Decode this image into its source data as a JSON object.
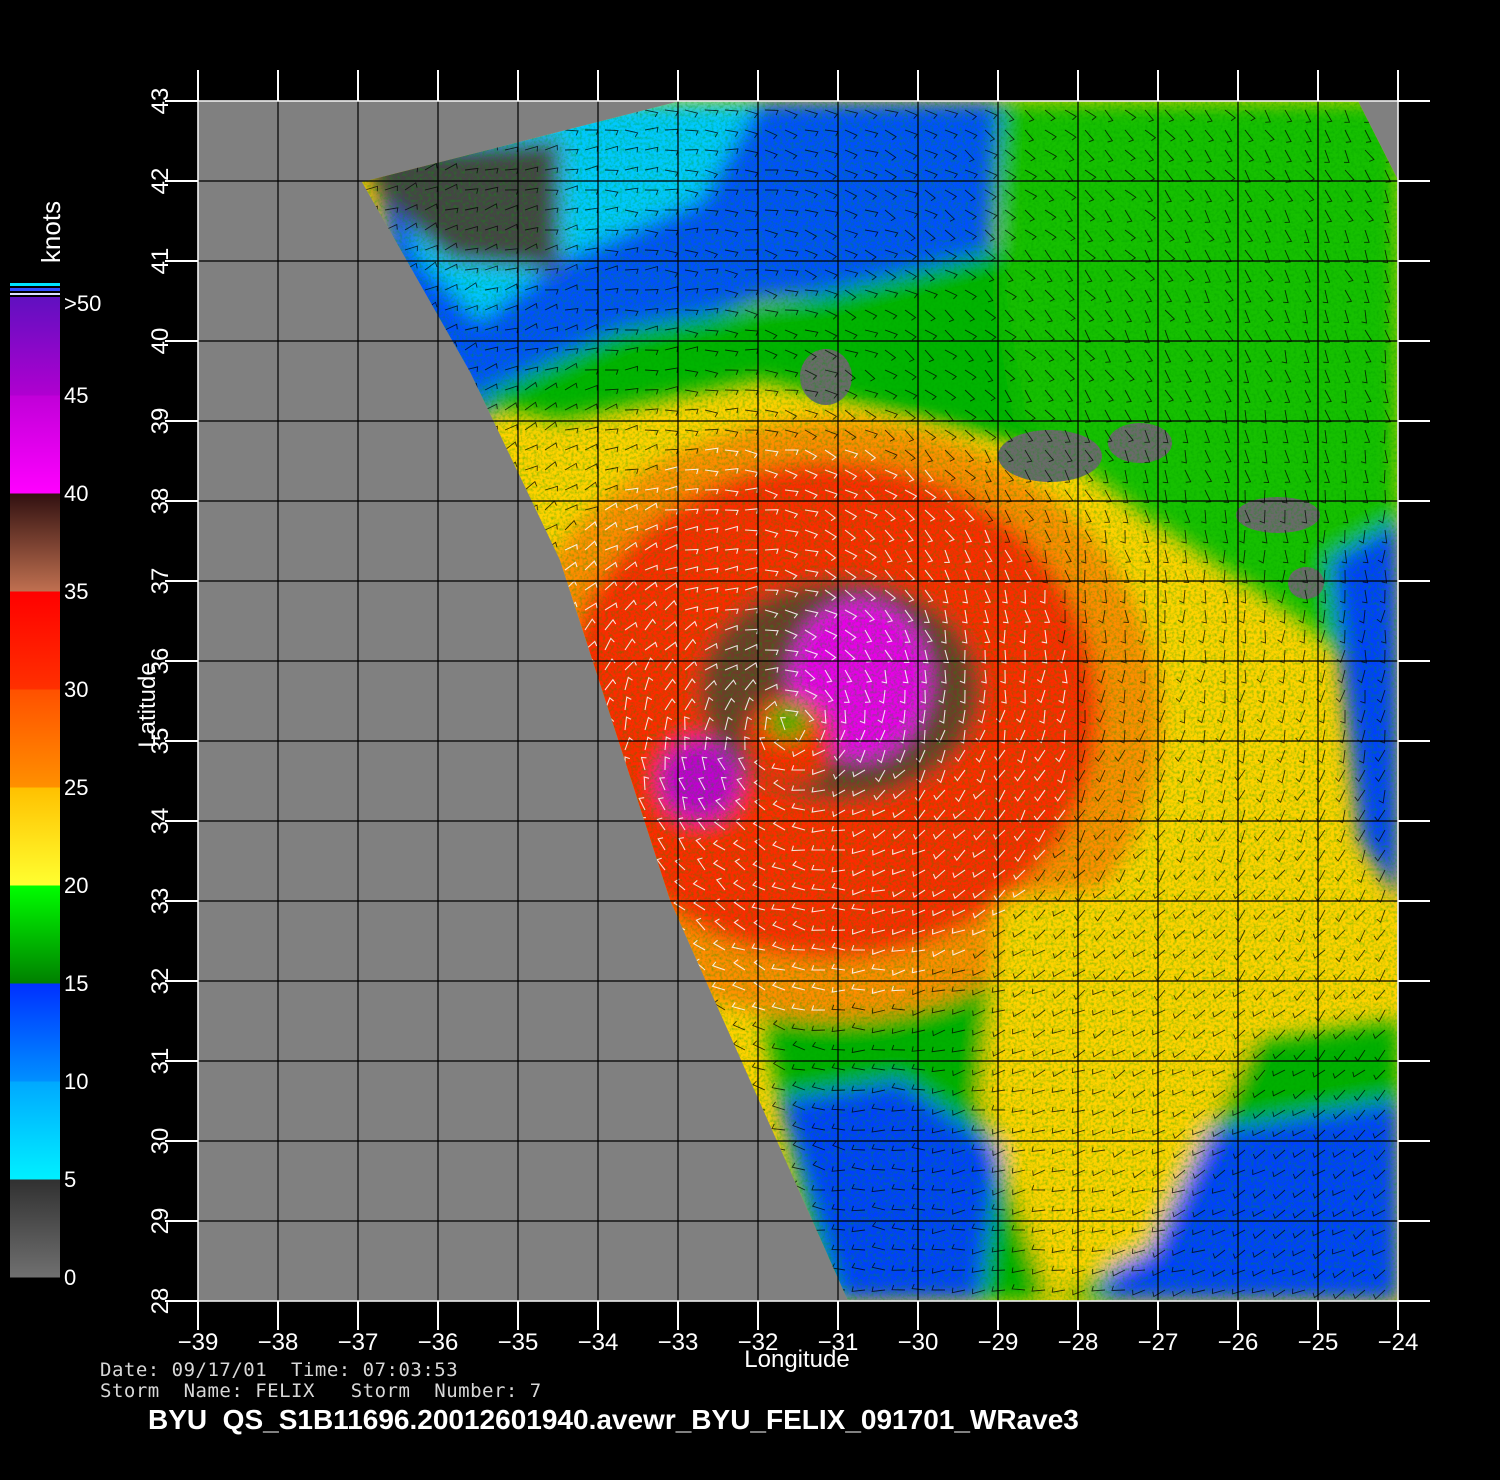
{
  "map": {
    "x_axis": {
      "label": "Longitude",
      "range": [
        -39,
        -24
      ],
      "ticks": [
        "−39",
        "−38",
        "−37",
        "−36",
        "−35",
        "−34",
        "−33",
        "−32",
        "−31",
        "−30",
        "−29",
        "−28",
        "−27",
        "−26",
        "−25",
        "−24"
      ]
    },
    "y_axis": {
      "label": "Latitude",
      "range": [
        28,
        43
      ],
      "ticks": [
        "28",
        "29",
        "30",
        "31",
        "32",
        "33",
        "34",
        "35",
        "36",
        "37",
        "38",
        "39",
        "40",
        "41",
        "42",
        "43"
      ]
    },
    "grid": true,
    "storm_center": {
      "lon": -31.6,
      "lat": 35.2
    },
    "colorbar": {
      "unit": "knots",
      "labels": [
        "0",
        "5",
        "10",
        "15",
        "20",
        "25",
        "30",
        "35",
        "40",
        "45",
        ">50"
      ],
      "colors": {
        "calm": "#4a4a4a",
        "5-10": "#00e4ff",
        "10-15": "#0040ff",
        "15-20": "#00c000",
        "20-25": "#ffe600",
        "25-30": "#ff8c00",
        "30-35": "#ff2000",
        "35-40": "#7a3c28",
        "40-45": "#ff00ff",
        "45-50": "#9000c8"
      },
      "no_data_color": "#808080"
    }
  },
  "footer": {
    "line1": "Date: 09/17/01  Time: 07:03:53",
    "line2": "Storm  Name: FELIX   Storm  Number: 7",
    "product_id": "BYU  QS_S1B11696.20012601940.avewr_BYU_FELIX_091701_WRave3"
  }
}
